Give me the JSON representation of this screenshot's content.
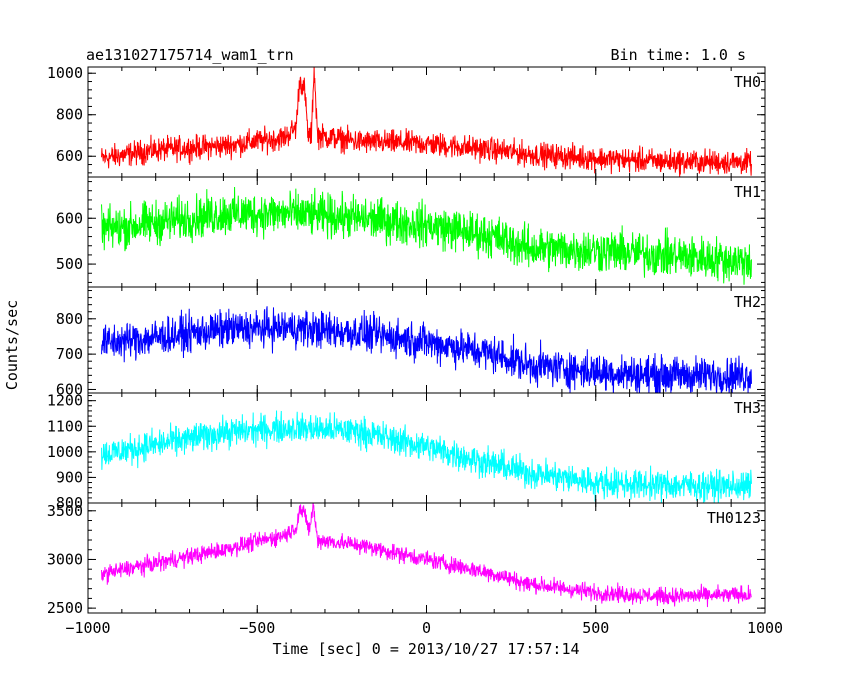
{
  "header": {
    "left": "ae131027175714_wam1_trn",
    "right": "Bin time: 1.0 s"
  },
  "chart_data": {
    "type": "line",
    "title": "ae131027175714_wam1_trn",
    "xlabel": "Time [sec] 0 = 2013/10/27 17:57:14",
    "ylabel": "Counts/sec",
    "bin_time": "Bin time: 1.0 s",
    "xlim": [
      -1000,
      1000
    ],
    "x_ticks": [
      -1000,
      -500,
      0,
      500,
      1000
    ],
    "x_tick_labels": [
      "−1000",
      "−500",
      "0",
      "500",
      "1000"
    ],
    "x_range_data": [
      -960,
      960
    ],
    "panels": [
      {
        "name": "TH0",
        "color": "#ff0000",
        "ylim": [
          500,
          1030
        ],
        "ticks": [
          600,
          800,
          1000
        ],
        "tick_labels": [
          "600",
          "800",
          "1000"
        ],
        "trend": [
          [
            -960,
            590
          ],
          [
            -800,
            630
          ],
          [
            -600,
            650
          ],
          [
            -420,
            690
          ],
          [
            -385,
            740
          ],
          [
            -375,
            970
          ],
          [
            -360,
            920
          ],
          [
            -350,
            700
          ],
          [
            -340,
            700
          ],
          [
            -332,
            1030
          ],
          [
            -322,
            700
          ],
          [
            -200,
            670
          ],
          [
            0,
            660
          ],
          [
            200,
            630
          ],
          [
            300,
            610
          ],
          [
            500,
            590
          ],
          [
            700,
            575
          ],
          [
            960,
            570
          ]
        ],
        "noise": 50,
        "series": [
          {
            "name": "TH0"
          }
        ]
      },
      {
        "name": "TH1",
        "color": "#00ff00",
        "ylim": [
          450,
          690
        ],
        "ticks": [
          500,
          600
        ],
        "tick_labels": [
          "500",
          "600"
        ],
        "trend": [
          [
            -960,
            575
          ],
          [
            -600,
            610
          ],
          [
            -400,
            610
          ],
          [
            -200,
            600
          ],
          [
            0,
            585
          ],
          [
            200,
            560
          ],
          [
            300,
            535
          ],
          [
            500,
            530
          ],
          [
            700,
            520
          ],
          [
            960,
            505
          ]
        ],
        "noise": 40,
        "series": [
          {
            "name": "TH1"
          }
        ]
      },
      {
        "name": "TH2",
        "color": "#0000ff",
        "ylim": [
          590,
          890
        ],
        "ticks": [
          600,
          700,
          800
        ],
        "tick_labels": [
          "600",
          "700",
          "800"
        ],
        "trend": [
          [
            -960,
            730
          ],
          [
            -600,
            770
          ],
          [
            -400,
            775
          ],
          [
            -200,
            760
          ],
          [
            0,
            735
          ],
          [
            200,
            700
          ],
          [
            300,
            670
          ],
          [
            500,
            650
          ],
          [
            700,
            640
          ],
          [
            960,
            640
          ]
        ],
        "noise": 45,
        "series": [
          {
            "name": "TH2"
          }
        ]
      },
      {
        "name": "TH3",
        "color": "#00ffff",
        "ylim": [
          800,
          1230
        ],
        "ticks": [
          800,
          900,
          1000,
          1100,
          1200
        ],
        "tick_labels": [
          "800",
          "900",
          "1000",
          "1100",
          "1200"
        ],
        "trend": [
          [
            -960,
            990
          ],
          [
            -600,
            1075
          ],
          [
            -400,
            1095
          ],
          [
            -200,
            1080
          ],
          [
            0,
            1020
          ],
          [
            200,
            950
          ],
          [
            300,
            920
          ],
          [
            500,
            880
          ],
          [
            700,
            870
          ],
          [
            960,
            865
          ]
        ],
        "noise": 50,
        "series": [
          {
            "name": "TH3"
          }
        ]
      },
      {
        "name": "TH0123",
        "color": "#ff00ff",
        "ylim": [
          2450,
          3580
        ],
        "ticks": [
          2500,
          3000,
          3500
        ],
        "tick_labels": [
          "2500",
          "3000",
          "3500"
        ],
        "trend": [
          [
            -960,
            2850
          ],
          [
            -600,
            3100
          ],
          [
            -420,
            3250
          ],
          [
            -385,
            3330
          ],
          [
            -375,
            3520
          ],
          [
            -360,
            3450
          ],
          [
            -345,
            3300
          ],
          [
            -335,
            3560
          ],
          [
            -322,
            3200
          ],
          [
            -200,
            3150
          ],
          [
            0,
            3000
          ],
          [
            200,
            2850
          ],
          [
            300,
            2750
          ],
          [
            500,
            2660
          ],
          [
            700,
            2620
          ],
          [
            960,
            2640
          ]
        ],
        "noise": 75,
        "series": [
          {
            "name": "TH0123"
          }
        ]
      }
    ]
  }
}
